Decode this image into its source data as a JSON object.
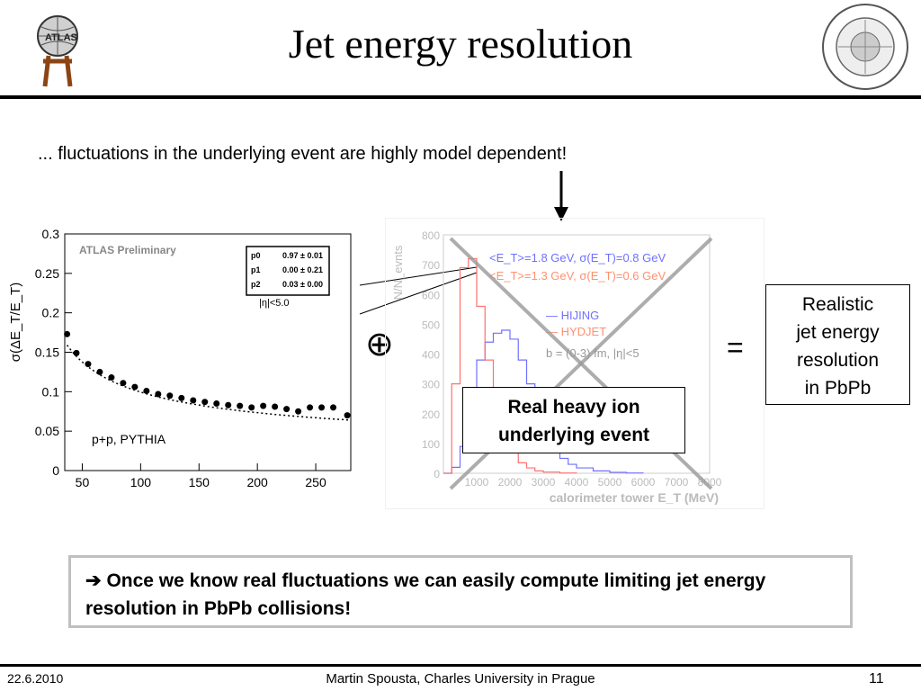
{
  "title": "Jet energy resolution",
  "subtitle": "... fluctuations in the underlying event are highly model dependent!",
  "result_box": {
    "lines": [
      "Realistic",
      "jet energy",
      "resolution",
      "in PbPb"
    ]
  },
  "operators": {
    "oplus": "⊕",
    "equals": "="
  },
  "overlay_box": {
    "lines": [
      "Real heavy ion",
      "underlying event"
    ]
  },
  "conclusion": {
    "arrow": "➔",
    "text": " Once we know real fluctuations we can easily compute limiting jet energy resolution in PbPb collisions!"
  },
  "footer": {
    "date": "22.6.2010",
    "author": "Martin Spousta,  Charles University in Prague",
    "page": "11"
  },
  "logos": {
    "left": "ATLAS",
    "right": "FACULTAS MATHEMATICA PHYSICAQUE"
  },
  "chart_data": [
    {
      "type": "scatter",
      "ylabel": "σ(ΔE_T/E_T)",
      "xlim": [
        35,
        280
      ],
      "ylim": [
        0,
        0.3
      ],
      "xticks": [
        "50",
        "100",
        "150",
        "200",
        "250"
      ],
      "yticks": [
        "0",
        "0.05",
        "0.1",
        "0.15",
        "0.2",
        "0.25",
        "0.3"
      ],
      "label_prelim": "ATLAS Preliminary",
      "label_gen": "p+p, PYTHIA",
      "label_eta": "|η|<5.0",
      "fit_table": [
        [
          "p0",
          "0.97 ± 0.01"
        ],
        [
          "p1",
          "0.00 ± 0.21"
        ],
        [
          "p2",
          "0.03 ± 0.00"
        ]
      ],
      "points": [
        [
          37,
          0.173
        ],
        [
          45,
          0.149
        ],
        [
          55,
          0.135
        ],
        [
          65,
          0.125
        ],
        [
          75,
          0.118
        ],
        [
          85,
          0.111
        ],
        [
          95,
          0.106
        ],
        [
          105,
          0.101
        ],
        [
          115,
          0.097
        ],
        [
          125,
          0.095
        ],
        [
          135,
          0.092
        ],
        [
          145,
          0.089
        ],
        [
          155,
          0.087
        ],
        [
          165,
          0.085
        ],
        [
          175,
          0.083
        ],
        [
          185,
          0.082
        ],
        [
          195,
          0.08
        ],
        [
          205,
          0.082
        ],
        [
          215,
          0.081
        ],
        [
          225,
          0.078
        ],
        [
          235,
          0.075
        ],
        [
          245,
          0.08
        ],
        [
          255,
          0.08
        ],
        [
          265,
          0.08
        ],
        [
          277,
          0.07
        ]
      ],
      "colors": {
        "points": "#000000",
        "fit": "#000000"
      }
    },
    {
      "type": "line",
      "xlabel": "calorimeter tower E_T (MeV)",
      "ylabel": "N/N_evnts",
      "xlim": [
        0,
        8000
      ],
      "ylim": [
        0,
        800
      ],
      "xticks": [
        "1000",
        "2000",
        "3000",
        "4000",
        "5000",
        "6000",
        "7000",
        "8000"
      ],
      "yticks": [
        "0",
        "100",
        "200",
        "300",
        "400",
        "500",
        "600",
        "700",
        "800"
      ],
      "series": [
        {
          "name": "HIJING",
          "color": "#7070ff",
          "x": [
            0,
            250,
            500,
            750,
            1000,
            1250,
            1500,
            1750,
            2000,
            2250,
            2500,
            2750,
            3000,
            3250,
            3500,
            3750,
            4000,
            4500,
            5000,
            5500,
            6000
          ],
          "y": [
            0,
            20,
            90,
            210,
            380,
            440,
            470,
            480,
            450,
            380,
            300,
            200,
            150,
            80,
            50,
            30,
            18,
            8,
            3,
            1,
            0
          ]
        },
        {
          "name": "HYDJET",
          "color": "#ff7070",
          "x": [
            0,
            250,
            500,
            750,
            1000,
            1250,
            1500,
            1750,
            2000,
            2250,
            2500,
            2750,
            3000,
            3500,
            4000
          ],
          "y": [
            0,
            300,
            690,
            720,
            560,
            380,
            230,
            130,
            70,
            35,
            18,
            8,
            4,
            1,
            0
          ]
        }
      ],
      "legend": [
        "<E_T>=1.8 GeV, σ(E_T)=0.8 GeV",
        "<E_T>=1.3 GeV, σ(E_T)=0.6 GeV",
        "— HIJING",
        "— HYDJET",
        "b = (0-3) fm, |η|<5"
      ]
    }
  ]
}
